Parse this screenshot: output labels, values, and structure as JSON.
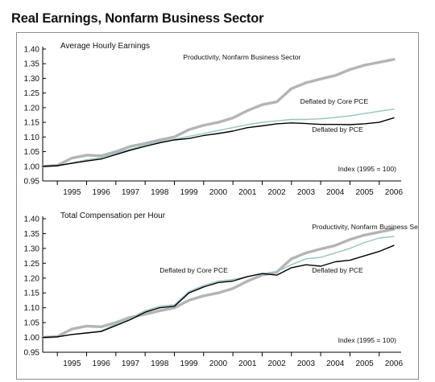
{
  "figure": {
    "title": "Real Earnings, Nonfarm Business Sector"
  },
  "colors": {
    "productivity": "#b4b4b4",
    "core_pce": "#93c4c4",
    "pce": "#000000",
    "axis": "#000000",
    "frame": "#8c8c8c"
  },
  "chart_data": [
    {
      "type": "line",
      "title": "Average Hourly Earnings",
      "note": "Index (1995 = 100)",
      "x_tick_labels": [
        "1995",
        "1996",
        "1997",
        "1998",
        "1999",
        "2000",
        "2001",
        "2002",
        "2003",
        "2004",
        "2005",
        "2006"
      ],
      "xlim": [
        1994.5,
        2006.75
      ],
      "ylim": [
        0.95,
        1.4
      ],
      "y_ticks": [
        "0.95",
        "1.00",
        "1.05",
        "1.10",
        "1.15",
        "1.20",
        "1.25",
        "1.30",
        "1.35",
        "1.40"
      ],
      "grid": false,
      "series": [
        {
          "name": "Productivity, Nonfarm Business Sector",
          "color": "#b4b4b4",
          "label_pos": [
            1999.3,
            1.365
          ],
          "label_anchor": "start",
          "x": [
            1994.5,
            1995.0,
            1995.5,
            1996.0,
            1996.5,
            1997.0,
            1997.5,
            1998.0,
            1998.5,
            1999.0,
            1999.5,
            2000.0,
            2000.5,
            2001.0,
            2001.5,
            2002.0,
            2002.5,
            2003.0,
            2003.5,
            2004.0,
            2004.5,
            2005.0,
            2005.5,
            2006.0,
            2006.5
          ],
          "values": [
            1.0,
            1.003,
            1.028,
            1.038,
            1.036,
            1.05,
            1.068,
            1.078,
            1.09,
            1.1,
            1.125,
            1.14,
            1.15,
            1.165,
            1.19,
            1.21,
            1.22,
            1.265,
            1.285,
            1.298,
            1.31,
            1.33,
            1.345,
            1.355,
            1.365
          ]
        },
        {
          "name": "Deflated by Core PCE",
          "color": "#93c4c4",
          "label_pos": [
            2003.3,
            1.213
          ],
          "label_anchor": "start",
          "x": [
            1994.5,
            1995.0,
            1995.5,
            1996.0,
            1996.5,
            1997.0,
            1997.5,
            1998.0,
            1998.5,
            1999.0,
            1999.5,
            2000.0,
            2000.5,
            2001.0,
            2001.5,
            2002.0,
            2002.5,
            2003.0,
            2003.5,
            2004.0,
            2004.5,
            2005.0,
            2005.5,
            2006.0,
            2006.5
          ],
          "values": [
            1.0,
            1.002,
            1.012,
            1.022,
            1.03,
            1.045,
            1.058,
            1.072,
            1.083,
            1.092,
            1.102,
            1.112,
            1.122,
            1.132,
            1.142,
            1.15,
            1.155,
            1.16,
            1.16,
            1.162,
            1.167,
            1.172,
            1.18,
            1.188,
            1.195
          ]
        },
        {
          "name": "Deflated by PCE",
          "color": "#000000",
          "label_pos": [
            2003.7,
            1.118
          ],
          "label_anchor": "start",
          "x": [
            1994.5,
            1995.0,
            1995.5,
            1996.0,
            1996.5,
            1997.0,
            1997.5,
            1998.0,
            1998.5,
            1999.0,
            1999.5,
            2000.0,
            2000.5,
            2001.0,
            2001.5,
            2002.0,
            2002.5,
            2003.0,
            2003.5,
            2004.0,
            2004.5,
            2005.0,
            2005.5,
            2006.0,
            2006.5
          ],
          "values": [
            1.0,
            1.002,
            1.01,
            1.018,
            1.025,
            1.04,
            1.055,
            1.068,
            1.08,
            1.09,
            1.095,
            1.105,
            1.112,
            1.12,
            1.132,
            1.138,
            1.145,
            1.148,
            1.146,
            1.143,
            1.143,
            1.142,
            1.145,
            1.15,
            1.165
          ]
        }
      ]
    },
    {
      "type": "line",
      "title": "Total Compensation per Hour",
      "note": "Index (1995 = 100)",
      "x_tick_labels": [
        "1995",
        "1996",
        "1997",
        "1998",
        "1999",
        "2000",
        "2001",
        "2002",
        "2003",
        "2004",
        "2005",
        "2006"
      ],
      "xlim": [
        1994.5,
        2006.75
      ],
      "ylim": [
        0.95,
        1.4
      ],
      "y_ticks": [
        "0.95",
        "1.00",
        "1.05",
        "1.10",
        "1.15",
        "1.20",
        "1.25",
        "1.30",
        "1.35",
        "1.40"
      ],
      "grid": false,
      "series": [
        {
          "name": "Productivity, Nonfarm Business Sector",
          "color": "#b4b4b4",
          "label_pos": [
            2003.7,
            1.365
          ],
          "label_anchor": "start",
          "x": [
            1994.5,
            1995.0,
            1995.5,
            1996.0,
            1996.5,
            1997.0,
            1997.5,
            1998.0,
            1998.5,
            1999.0,
            1999.5,
            2000.0,
            2000.5,
            2001.0,
            2001.5,
            2002.0,
            2002.5,
            2003.0,
            2003.5,
            2004.0,
            2004.5,
            2005.0,
            2005.5,
            2006.0,
            2006.5
          ],
          "values": [
            1.0,
            1.003,
            1.028,
            1.038,
            1.036,
            1.05,
            1.068,
            1.078,
            1.09,
            1.1,
            1.125,
            1.14,
            1.15,
            1.165,
            1.19,
            1.21,
            1.22,
            1.265,
            1.285,
            1.298,
            1.31,
            1.33,
            1.345,
            1.355,
            1.365
          ]
        },
        {
          "name": "Deflated by Core PCE",
          "color": "#93c4c4",
          "label_pos": [
            1998.5,
            1.218
          ],
          "label_anchor": "start",
          "x": [
            1994.5,
            1995.0,
            1995.5,
            1996.0,
            1996.5,
            1997.0,
            1997.5,
            1998.0,
            1998.5,
            1999.0,
            1999.5,
            2000.0,
            2000.5,
            2001.0,
            2001.5,
            2002.0,
            2002.5,
            2003.0,
            2003.5,
            2004.0,
            2004.5,
            2005.0,
            2005.5,
            2006.0,
            2006.5
          ],
          "values": [
            1.0,
            1.002,
            1.01,
            1.015,
            1.022,
            1.045,
            1.065,
            1.09,
            1.105,
            1.11,
            1.155,
            1.175,
            1.19,
            1.195,
            1.205,
            1.215,
            1.222,
            1.245,
            1.265,
            1.27,
            1.285,
            1.3,
            1.32,
            1.335,
            1.34
          ]
        },
        {
          "name": "Deflated by PCE",
          "color": "#000000",
          "label_pos": [
            2003.7,
            1.218
          ],
          "label_anchor": "start",
          "x": [
            1994.5,
            1995.0,
            1995.5,
            1996.0,
            1996.5,
            1997.0,
            1997.5,
            1998.0,
            1998.5,
            1999.0,
            1999.5,
            2000.0,
            2000.5,
            2001.0,
            2001.5,
            2002.0,
            2002.5,
            2003.0,
            2003.5,
            2004.0,
            2004.5,
            2005.0,
            2005.5,
            2006.0,
            2006.5
          ],
          "values": [
            1.0,
            1.002,
            1.01,
            1.015,
            1.02,
            1.04,
            1.06,
            1.085,
            1.1,
            1.105,
            1.15,
            1.17,
            1.185,
            1.19,
            1.205,
            1.215,
            1.21,
            1.235,
            1.245,
            1.24,
            1.255,
            1.26,
            1.275,
            1.29,
            1.31
          ]
        }
      ]
    }
  ]
}
